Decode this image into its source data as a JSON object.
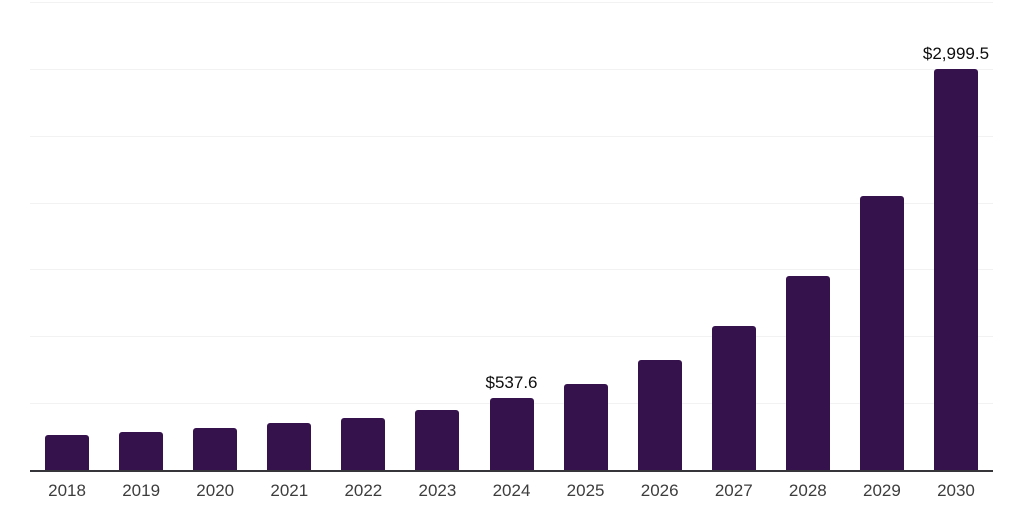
{
  "chart_data": {
    "type": "bar",
    "title": "",
    "subtitle": "",
    "xlabel": "",
    "ylabel": "",
    "legend": false,
    "grid": true,
    "gridline_step": 500,
    "ylim": [
      0,
      3500
    ],
    "categories": [
      "2018",
      "2019",
      "2020",
      "2021",
      "2022",
      "2023",
      "2024",
      "2025",
      "2026",
      "2027",
      "2028",
      "2029",
      "2030"
    ],
    "values": [
      265,
      283,
      314,
      351,
      390,
      450,
      537.6,
      647,
      820,
      1078,
      1450,
      2050,
      2999.5
    ],
    "value_labels": {
      "2024": "$537.6",
      "2030": "$2,999.5"
    }
  },
  "style": {
    "bar_color": "#36124d",
    "axis_line_color": "#35353a",
    "gridline_color": "#f2f2f2",
    "tick_label_color": "#3d3d3d",
    "value_label_color": "#0d0d0d",
    "background_color": "#ffffff"
  }
}
